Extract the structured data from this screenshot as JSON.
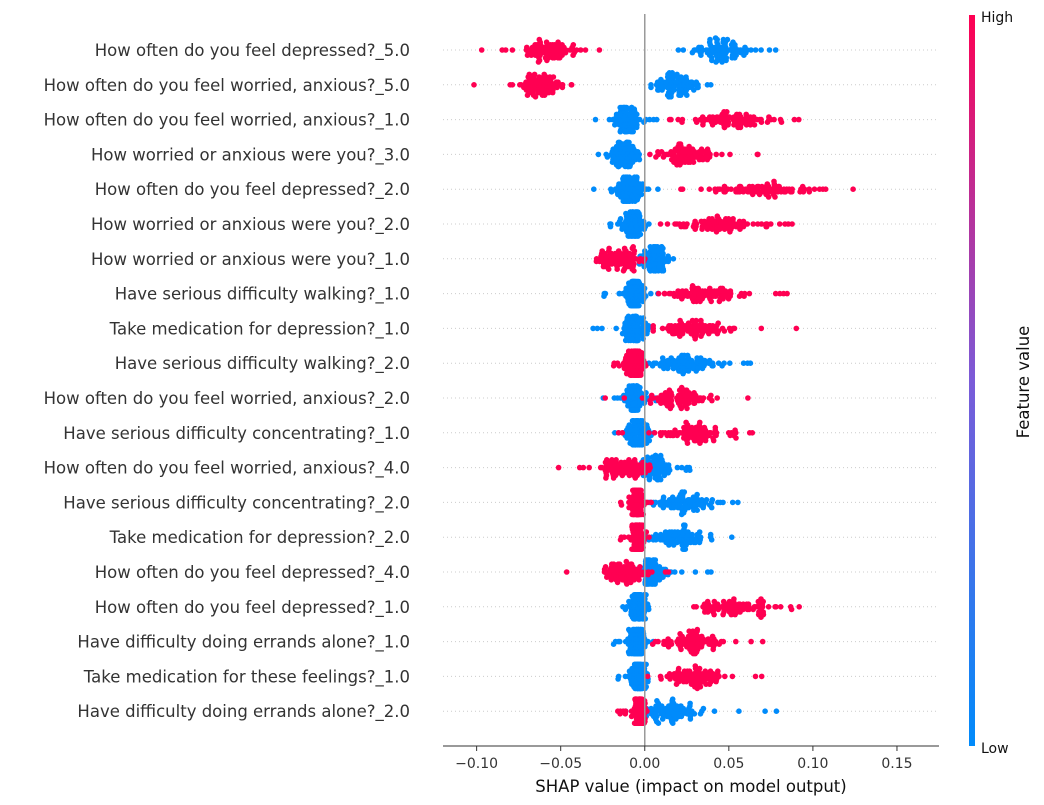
{
  "chart_data": {
    "type": "scatter",
    "subtype": "shap-beeswarm",
    "title": "",
    "xlabel": "SHAP value (impact on model output)",
    "ylabel": "",
    "xlim": [
      -0.12,
      0.175
    ],
    "xticks": [
      -0.1,
      -0.05,
      0.0,
      0.05,
      0.1,
      0.15
    ],
    "xtick_labels": [
      "−0.10",
      "−0.05",
      "0.00",
      "0.05",
      "0.10",
      "0.15"
    ],
    "zero_line": 0.0,
    "colorbar": {
      "title": "Feature value",
      "high_label": "High",
      "low_label": "Low",
      "high_color": "#ff0052",
      "low_color": "#008bfb"
    },
    "features": [
      {
        "name": "How often do you feel depressed?_5.0",
        "high": {
          "min": -0.098,
          "max": -0.02,
          "center": -0.058,
          "spread": 0.012
        },
        "low": {
          "min": -0.005,
          "max": 0.082,
          "center": 0.045,
          "spread": 0.014
        }
      },
      {
        "name": "How often do you feel worried, anxious?_5.0",
        "high": {
          "min": -0.105,
          "max": -0.025,
          "center": -0.062,
          "spread": 0.01
        },
        "low": {
          "min": -0.005,
          "max": 0.04,
          "center": 0.02,
          "spread": 0.009
        }
      },
      {
        "name": "How often do you feel worried, anxious?_1.0",
        "high": {
          "min": 0.0,
          "max": 0.125,
          "center": 0.05,
          "spread": 0.022
        },
        "low": {
          "min": -0.033,
          "max": 0.008,
          "center": -0.01,
          "spread": 0.006
        }
      },
      {
        "name": "How worried or anxious were you?_3.0",
        "high": {
          "min": 0.0,
          "max": 0.068,
          "center": 0.025,
          "spread": 0.012
        },
        "low": {
          "min": -0.034,
          "max": 0.008,
          "center": -0.012,
          "spread": 0.006
        }
      },
      {
        "name": "How often do you feel depressed?_2.0",
        "high": {
          "min": 0.01,
          "max": 0.16,
          "center": 0.07,
          "spread": 0.024
        },
        "low": {
          "min": -0.033,
          "max": 0.008,
          "center": -0.008,
          "spread": 0.006
        }
      },
      {
        "name": "How worried or anxious were you?_2.0",
        "high": {
          "min": 0.005,
          "max": 0.11,
          "center": 0.045,
          "spread": 0.02
        },
        "low": {
          "min": -0.028,
          "max": 0.01,
          "center": -0.007,
          "spread": 0.005
        }
      },
      {
        "name": "How worried or anxious were you?_1.0",
        "high": {
          "min": -0.048,
          "max": 0.005,
          "center": -0.015,
          "spread": 0.009
        },
        "low": {
          "min": -0.012,
          "max": 0.03,
          "center": 0.005,
          "spread": 0.007
        }
      },
      {
        "name": "Have serious difficulty walking?_1.0",
        "high": {
          "min": 0.005,
          "max": 0.093,
          "center": 0.035,
          "spread": 0.016
        },
        "low": {
          "min": -0.025,
          "max": 0.008,
          "center": -0.006,
          "spread": 0.005
        }
      },
      {
        "name": "Take medication for depression?_1.0",
        "high": {
          "min": 0.005,
          "max": 0.092,
          "center": 0.03,
          "spread": 0.015
        },
        "low": {
          "min": -0.033,
          "max": 0.008,
          "center": -0.006,
          "spread": 0.005
        }
      },
      {
        "name": "Have serious difficulty walking?_2.0",
        "high": {
          "min": -0.022,
          "max": 0.005,
          "center": -0.006,
          "spread": 0.004
        },
        "low": {
          "min": 0.0,
          "max": 0.076,
          "center": 0.025,
          "spread": 0.014
        }
      },
      {
        "name": "How often do you feel worried, anxious?_2.0",
        "high": {
          "min": -0.025,
          "max": 0.066,
          "center": 0.02,
          "spread": 0.014
        },
        "low": {
          "min": -0.025,
          "max": 0.01,
          "center": -0.006,
          "spread": 0.005
        }
      },
      {
        "name": "Have serious difficulty concentrating?_1.0",
        "high": {
          "min": -0.025,
          "max": 0.081,
          "center": 0.03,
          "spread": 0.016
        },
        "low": {
          "min": -0.02,
          "max": 0.008,
          "center": -0.005,
          "spread": 0.005
        }
      },
      {
        "name": "How often do you feel worried, anxious?_4.0",
        "high": {
          "min": -0.056,
          "max": 0.005,
          "center": -0.012,
          "spread": 0.01
        },
        "low": {
          "min": -0.01,
          "max": 0.031,
          "center": 0.006,
          "spread": 0.007
        }
      },
      {
        "name": "Have serious difficulty concentrating?_2.0",
        "high": {
          "min": -0.018,
          "max": 0.004,
          "center": -0.005,
          "spread": 0.003
        },
        "low": {
          "min": 0.0,
          "max": 0.075,
          "center": 0.025,
          "spread": 0.014
        }
      },
      {
        "name": "Take medication for depression?_2.0",
        "high": {
          "min": -0.015,
          "max": 0.003,
          "center": -0.004,
          "spread": 0.003
        },
        "low": {
          "min": 0.0,
          "max": 0.06,
          "center": 0.02,
          "spread": 0.012
        }
      },
      {
        "name": "How often do you feel depressed?_4.0",
        "high": {
          "min": -0.047,
          "max": 0.015,
          "center": -0.01,
          "spread": 0.009
        },
        "low": {
          "min": -0.005,
          "max": 0.04,
          "center": 0.004,
          "spread": 0.006
        }
      },
      {
        "name": "How often do you feel depressed?_1.0",
        "high": {
          "min": 0.025,
          "max": 0.105,
          "center": 0.055,
          "spread": 0.016
        },
        "low": {
          "min": -0.02,
          "max": 0.007,
          "center": -0.004,
          "spread": 0.004
        }
      },
      {
        "name": "Have difficulty doing errands alone?_1.0",
        "high": {
          "min": 0.0,
          "max": 0.075,
          "center": 0.03,
          "spread": 0.014
        },
        "low": {
          "min": -0.02,
          "max": 0.006,
          "center": -0.004,
          "spread": 0.004
        }
      },
      {
        "name": "Take medication for these feelings?_1.0",
        "high": {
          "min": 0.0,
          "max": 0.072,
          "center": 0.028,
          "spread": 0.013
        },
        "low": {
          "min": -0.024,
          "max": 0.006,
          "center": -0.004,
          "spread": 0.004
        }
      },
      {
        "name": "Have difficulty doing errands alone?_2.0",
        "high": {
          "min": -0.02,
          "max": 0.003,
          "center": -0.003,
          "spread": 0.003
        },
        "low": {
          "min": -0.02,
          "max": 0.08,
          "center": 0.015,
          "spread": 0.012
        }
      }
    ]
  }
}
